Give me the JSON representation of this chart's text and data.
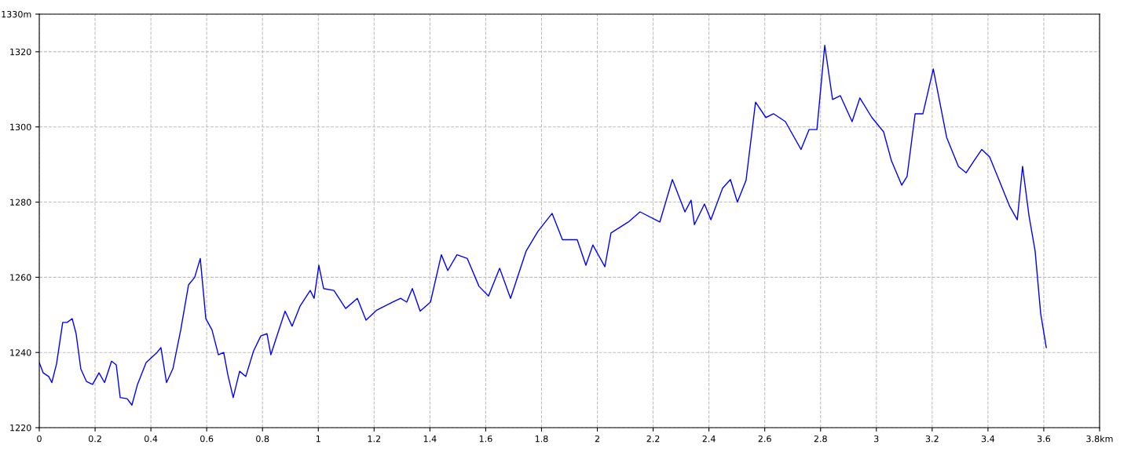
{
  "chart_data": {
    "type": "line",
    "xlim": [
      0,
      3.8
    ],
    "ylim": [
      1220,
      1330
    ],
    "xticks": [
      0,
      0.2,
      0.4,
      0.6,
      0.8,
      1,
      1.2,
      1.4,
      1.6,
      1.8,
      2,
      2.2,
      2.4,
      2.6,
      2.8,
      3,
      3.2,
      3.4,
      3.6,
      {
        "value": 3.8,
        "label": "3.8km"
      }
    ],
    "yticks": [
      1220,
      1240,
      1260,
      1280,
      1300,
      1320,
      {
        "value": 1330,
        "label": "1330m"
      }
    ],
    "grid": true,
    "line_style": "solid",
    "marker": "none",
    "series": [
      {
        "color": "#0000ff",
        "x": [
          0,
          0.014,
          0.034,
          0.045,
          0.062,
          0.084,
          0.1,
          0.118,
          0.132,
          0.149,
          0.169,
          0.191,
          0.214,
          0.234,
          0.259,
          0.276,
          0.29,
          0.315,
          0.332,
          0.352,
          0.383,
          0.422,
          0.436,
          0.456,
          0.479,
          0.507,
          0.535,
          0.557,
          0.577,
          0.597,
          0.619,
          0.642,
          0.661,
          0.676,
          0.695,
          0.718,
          0.74,
          0.768,
          0.794,
          0.816,
          0.83,
          0.85,
          0.881,
          0.906,
          0.935,
          0.971,
          0.985,
          1.002,
          1.019,
          1.056,
          1.098,
          1.14,
          1.171,
          1.21,
          1.267,
          1.295,
          1.317,
          1.337,
          1.365,
          1.402,
          1.441,
          1.464,
          1.497,
          1.534,
          1.576,
          1.61,
          1.65,
          1.689,
          1.745,
          1.787,
          1.838,
          1.875,
          1.928,
          1.959,
          1.984,
          2.027,
          2.049,
          2.111,
          2.153,
          2.224,
          2.269,
          2.314,
          2.336,
          2.348,
          2.384,
          2.407,
          2.449,
          2.477,
          2.502,
          2.533,
          2.567,
          2.604,
          2.632,
          2.674,
          2.73,
          2.759,
          2.787,
          2.815,
          2.843,
          2.871,
          2.913,
          2.941,
          2.984,
          3.026,
          3.054,
          3.091,
          3.11,
          3.139,
          3.167,
          3.204,
          3.252,
          3.294,
          3.322,
          3.35,
          3.378,
          3.406,
          3.44,
          3.477,
          3.505,
          3.524,
          3.547,
          3.569,
          3.589,
          3.609
        ],
        "values": [
          1237.3,
          1234.6,
          1233.6,
          1232,
          1237,
          1248,
          1248,
          1249,
          1245,
          1235.6,
          1232.3,
          1231.5,
          1234.6,
          1232,
          1237.7,
          1236.7,
          1228,
          1227.7,
          1226,
          1231.5,
          1237.3,
          1240,
          1241.3,
          1232,
          1235.7,
          1246,
          1258,
          1260,
          1265,
          1249,
          1246,
          1239.4,
          1240,
          1234,
          1228,
          1235,
          1233.6,
          1240.4,
          1244.4,
          1245,
          1239.4,
          1244,
          1251,
          1247,
          1252.4,
          1256.5,
          1254.4,
          1263.2,
          1257,
          1256.5,
          1251.7,
          1254.4,
          1248.6,
          1251.3,
          1253.4,
          1254.4,
          1253.4,
          1257,
          1251,
          1253.4,
          1266,
          1261.8,
          1266,
          1265,
          1257.6,
          1255,
          1262.4,
          1254.4,
          1267,
          1272.2,
          1277,
          1270,
          1270,
          1263.2,
          1268.6,
          1262.8,
          1271.8,
          1274.7,
          1277.4,
          1274.7,
          1286,
          1277.4,
          1280.5,
          1274,
          1279.5,
          1275.3,
          1283.7,
          1286,
          1280,
          1285.8,
          1306.6,
          1302.5,
          1303.5,
          1301.4,
          1294,
          1299.3,
          1299.3,
          1321.7,
          1307.3,
          1308.3,
          1301.4,
          1307.7,
          1302.5,
          1298.7,
          1291,
          1284.5,
          1286.8,
          1303.5,
          1303.5,
          1315.4,
          1297.2,
          1289.5,
          1287.8,
          1291,
          1294,
          1292,
          1285.8,
          1279,
          1275.3,
          1289.5,
          1276.4,
          1267,
          1250.3,
          1241.3
        ]
      }
    ]
  }
}
